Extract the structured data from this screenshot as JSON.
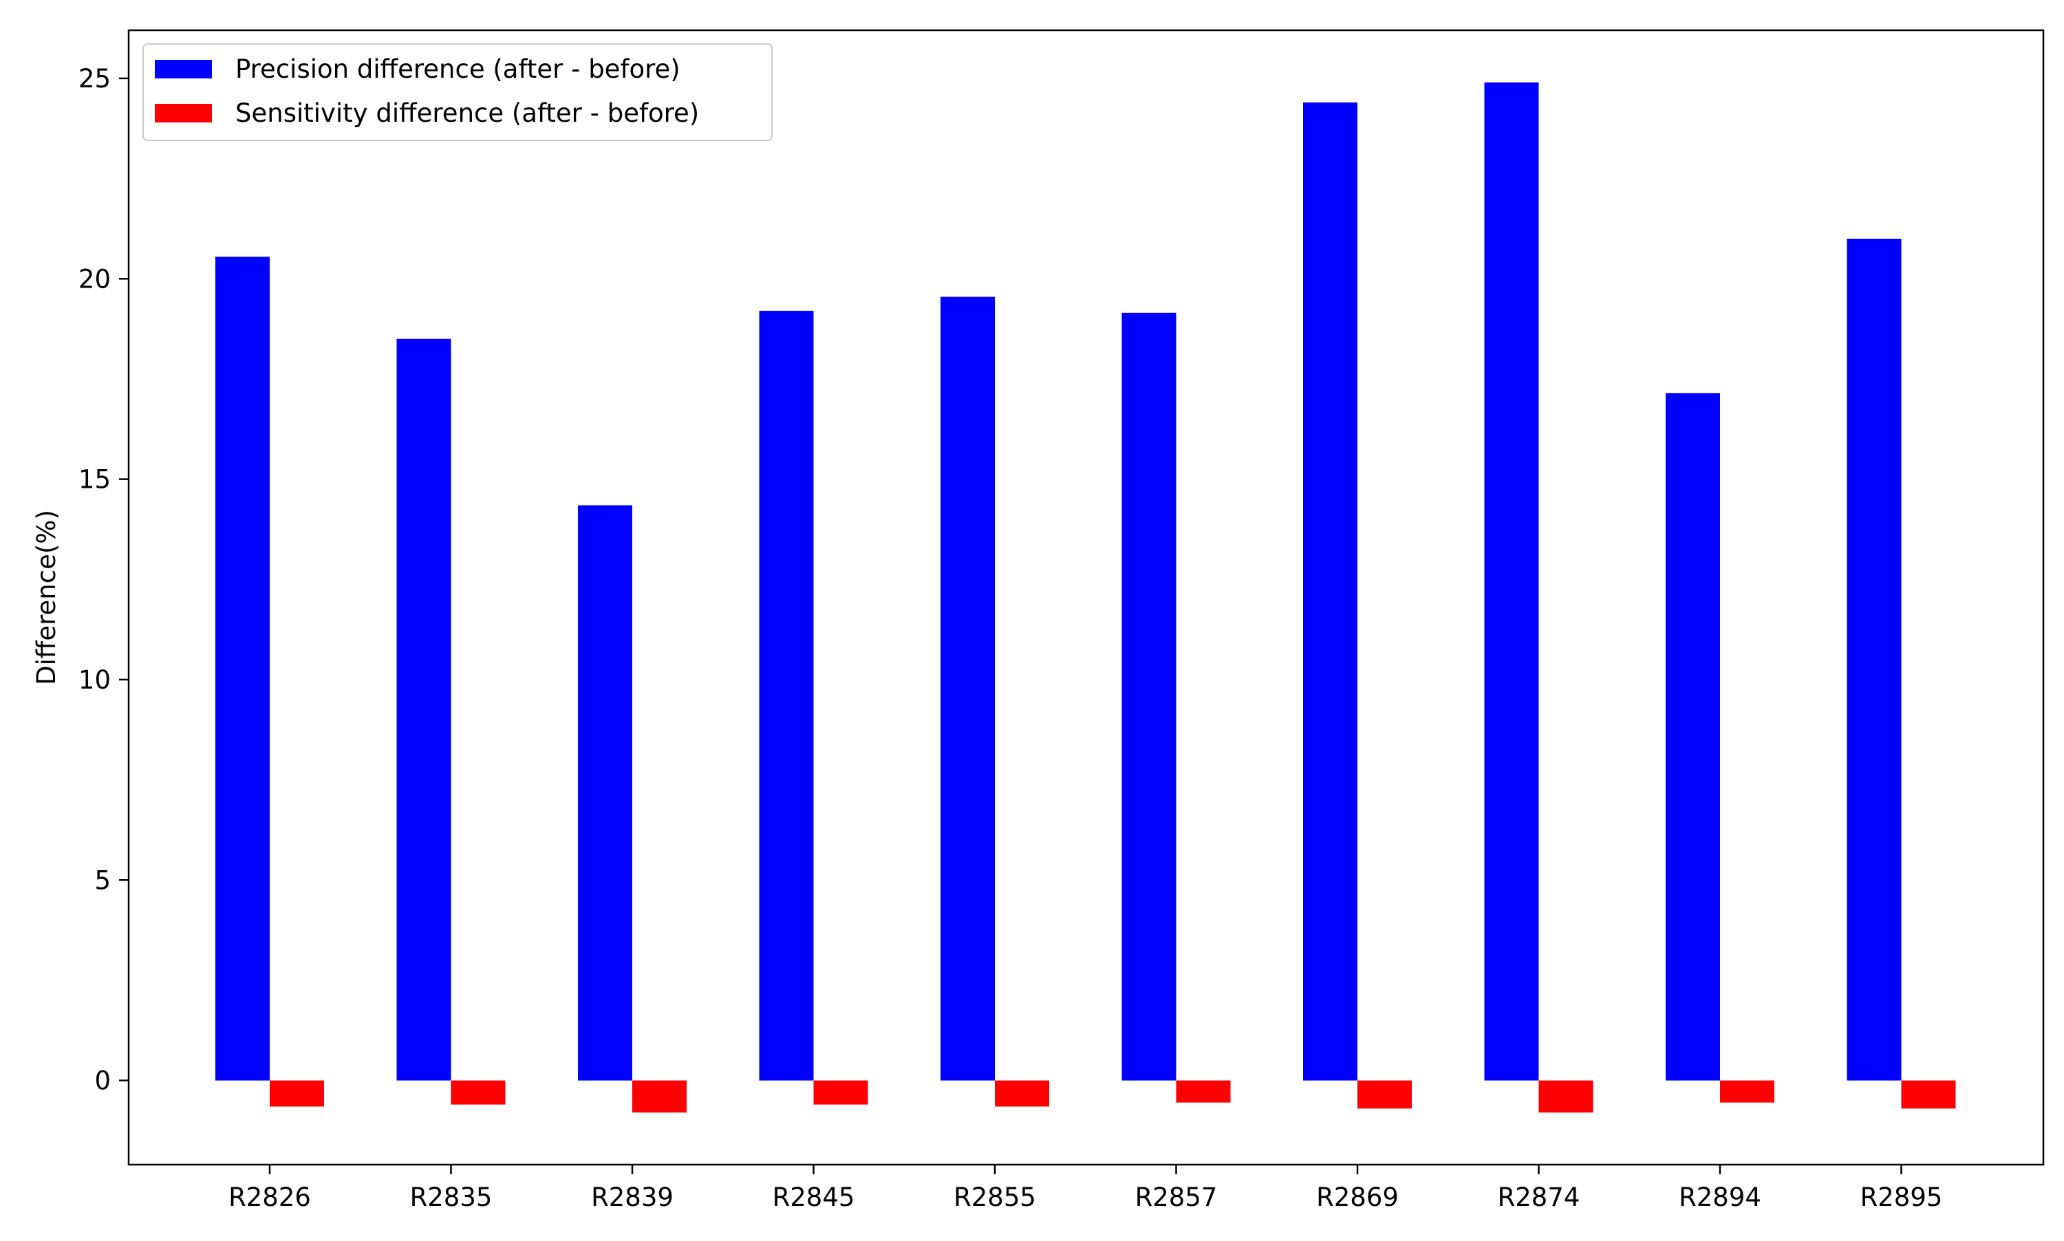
{
  "chart_data": {
    "type": "bar",
    "title": "",
    "xlabel": "",
    "ylabel": "Difference(%)",
    "categories": [
      "R2826",
      "R2835",
      "R2839",
      "R2845",
      "R2855",
      "R2857",
      "R2869",
      "R2874",
      "R2894",
      "R2895"
    ],
    "series": [
      {
        "name": "Precision difference (after - before)",
        "color": "#0000ff",
        "values": [
          20.55,
          18.5,
          14.35,
          19.2,
          19.55,
          19.15,
          24.4,
          24.9,
          17.15,
          21.0
        ]
      },
      {
        "name": "Sensitivity difference (after - before)",
        "color": "#ff0000",
        "values": [
          -0.65,
          -0.6,
          -0.8,
          -0.6,
          -0.65,
          -0.55,
          -0.7,
          -0.8,
          -0.55,
          -0.7
        ]
      }
    ],
    "ylim": [
      -2.1,
      26.2
    ],
    "yticks": [
      0,
      5,
      10,
      15,
      20,
      25
    ],
    "grid": false,
    "legend_position": "upper-left"
  }
}
